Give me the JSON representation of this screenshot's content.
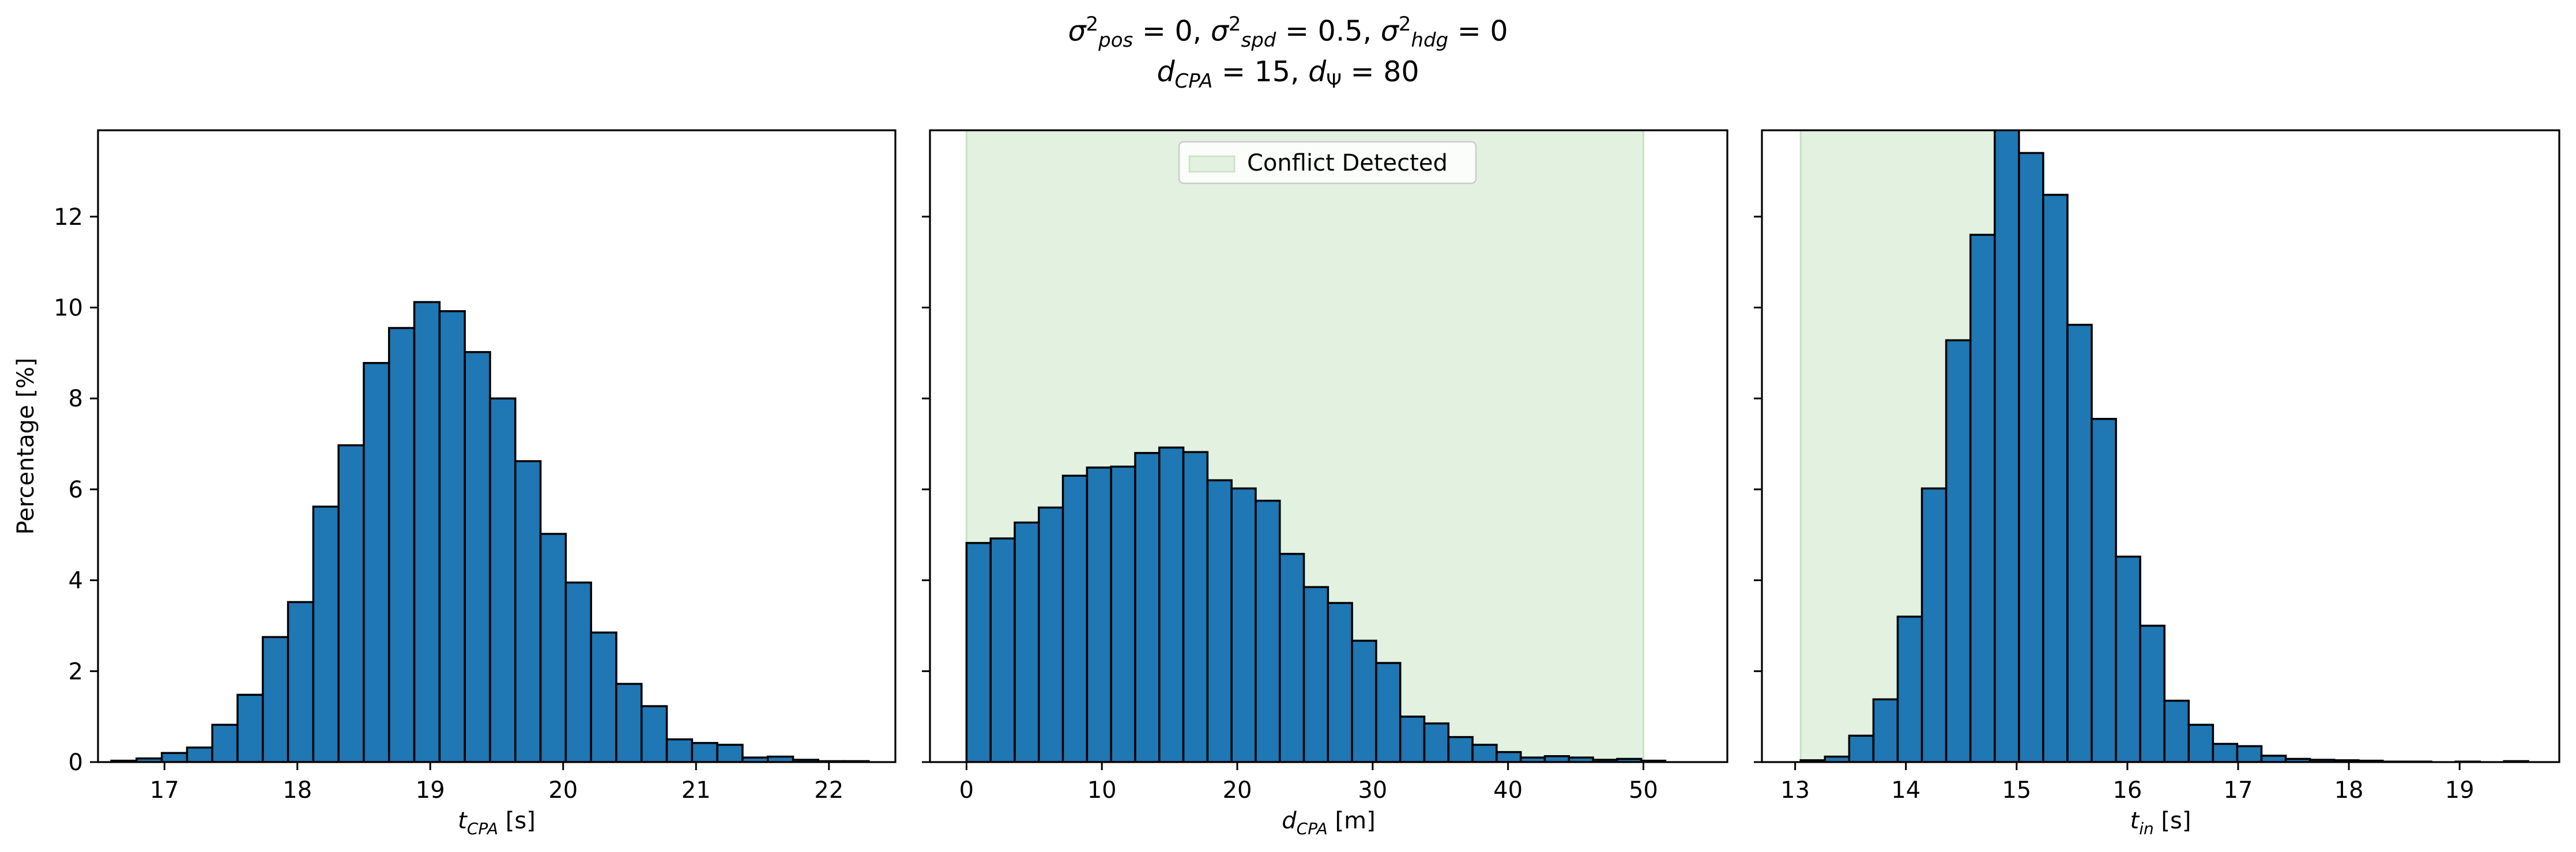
{
  "suptitle": {
    "line1": {
      "sigma_pos": "0",
      "sigma_spd": "0.5",
      "sigma_hdg": "0"
    },
    "line2": {
      "d_cpa": "15",
      "d_psi": "80"
    }
  },
  "legend_label": "Conflict Detected",
  "colors": {
    "bar": "#1f77b4",
    "bar_edge": "#000000",
    "conflict_fill": "#e3f1e0",
    "conflict_edge": "#c7e2c2"
  },
  "chart_data": [
    {
      "type": "bar",
      "title": "",
      "xlabel": "t_CPA [s]",
      "ylabel": "Percentage [%]",
      "xlim": [
        16.5,
        22.5
      ],
      "ylim": [
        0,
        13.9
      ],
      "xticks": [
        "17",
        "18",
        "19",
        "20",
        "21",
        "22"
      ],
      "yticks": [
        "0",
        "2",
        "4",
        "6",
        "8",
        "10",
        "12"
      ],
      "bin_start": 16.6,
      "bin_width": 0.19,
      "values": [
        0.03,
        0.08,
        0.2,
        0.32,
        0.82,
        1.48,
        2.75,
        3.52,
        5.62,
        6.97,
        8.78,
        9.55,
        10.12,
        9.92,
        9.02,
        8.0,
        6.62,
        5.02,
        3.95,
        2.85,
        1.72,
        1.23,
        0.5,
        0.42,
        0.38,
        0.1,
        0.12,
        0.05,
        0.02,
        0.02
      ],
      "conflict_region": null
    },
    {
      "type": "bar",
      "title": "",
      "xlabel": "d_CPA [m]",
      "ylabel": "",
      "xlim": [
        -2.7,
        56.2
      ],
      "ylim": [
        0,
        13.9
      ],
      "xticks": [
        "0",
        "10",
        "20",
        "30",
        "40",
        "50"
      ],
      "yticks": [],
      "bin_start": 0.0,
      "bin_width": 1.78,
      "values": [
        4.82,
        4.92,
        5.27,
        5.6,
        6.3,
        6.48,
        6.5,
        6.8,
        6.92,
        6.82,
        6.2,
        6.02,
        5.75,
        4.58,
        3.85,
        3.5,
        2.67,
        2.18,
        1.0,
        0.85,
        0.55,
        0.38,
        0.22,
        0.1,
        0.13,
        0.1,
        0.05,
        0.07,
        0.03,
        0.0
      ],
      "conflict_region": [
        0,
        50
      ],
      "legend": {
        "label": "Conflict Detected",
        "placement": "top-center"
      }
    },
    {
      "type": "bar",
      "title": "",
      "xlabel": "t_in [s]",
      "ylabel": "",
      "xlim": [
        12.7,
        19.9
      ],
      "ylim": [
        0,
        13.9
      ],
      "xticks": [
        "13",
        "14",
        "15",
        "16",
        "17",
        "18",
        "19"
      ],
      "yticks": [],
      "bin_start": 13.05,
      "bin_width": 0.219,
      "values": [
        0.04,
        0.12,
        0.58,
        1.38,
        3.2,
        6.02,
        9.28,
        11.6,
        13.95,
        13.4,
        12.48,
        9.62,
        7.55,
        4.52,
        3.0,
        1.35,
        0.82,
        0.4,
        0.35,
        0.14,
        0.07,
        0.05,
        0.04,
        0.03,
        0.01,
        0.01,
        0.0,
        0.01,
        0.0,
        0.02
      ],
      "conflict_region": [
        13.05,
        15.0
      ]
    }
  ]
}
